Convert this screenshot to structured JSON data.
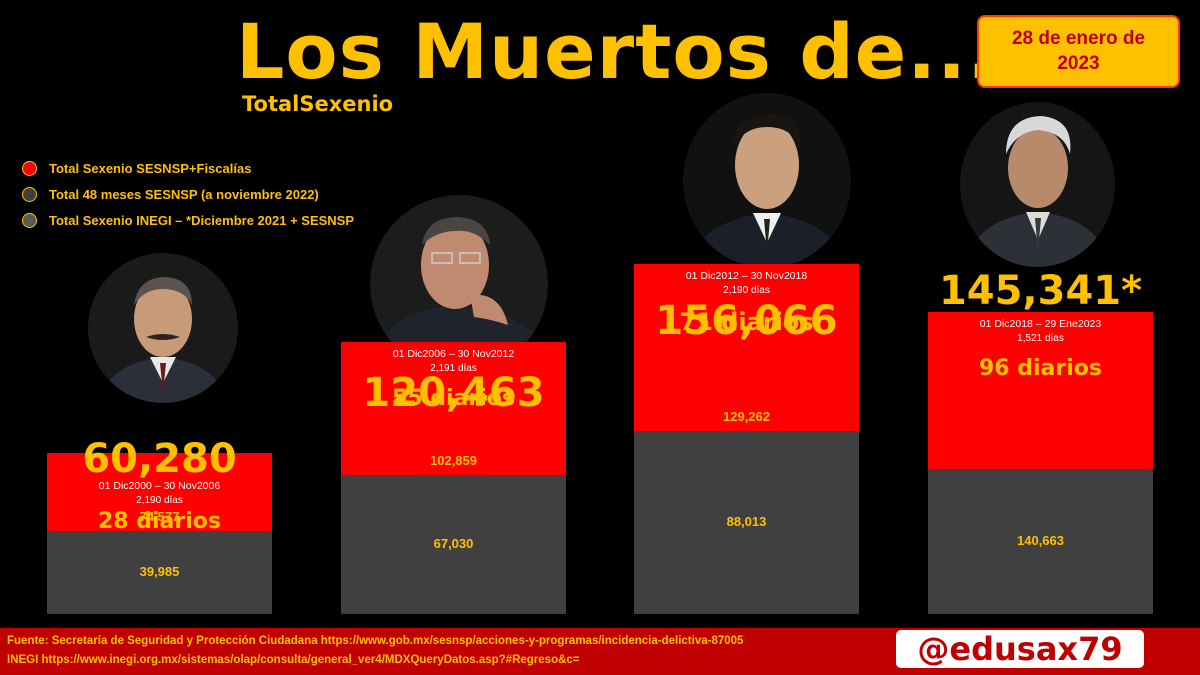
{
  "title": "Los Muertos de...",
  "subtitle": "TotalSexenio",
  "date_badge": [
    "28 de enero de",
    "2023"
  ],
  "legend": [
    {
      "label": "Total Sexenio SESNSP+Fiscalías",
      "color": "#ff0000"
    },
    {
      "label": "Total 48 meses SESNSP (a noviembre 2022)",
      "color": "#404040"
    },
    {
      "label": "Total Sexenio INEGI – *Diciembre 2021 + SESNSP",
      "color": "#595959"
    }
  ],
  "colors": {
    "accent": "#ffc000",
    "red": "#ff0000",
    "dark_red": "#c00000",
    "gray": "#404040",
    "top_gray": "#595959"
  },
  "chart_data": {
    "type": "bar",
    "categories": [
      "01 Dic2000 – 30 Nov2006",
      "01 Dic2006 – 30 Nov2012",
      "01 Dic2012 – 30 Nov2018",
      "01 Dic2018 – 29 Ene2023"
    ],
    "series": [
      {
        "name": "Total Sexenio SESNSP+Fiscalías",
        "values": [
          74577,
          102859,
          129262,
          140663
        ]
      },
      {
        "name": "Total 48 meses SESNSP (a noviembre 2022)",
        "values": [
          39985,
          67030,
          88013,
          null
        ]
      },
      {
        "name": "Total Sexenio INEGI – *Diciembre 2021 + SESNSP",
        "values": [
          60280,
          120463,
          156066,
          145341
        ]
      }
    ],
    "totals_labels": [
      "60,280",
      "120,463",
      "156,066",
      "145,341*"
    ],
    "red_labels": [
      "74,577",
      "102,859",
      "129,262",
      ""
    ],
    "gray_labels": [
      "39,985",
      "67,030",
      "88,013",
      "140,663"
    ],
    "ranges": [
      "01 Dic2000 – 30 Nov2006",
      "01 Dic2006 – 30 Nov2012",
      "01 Dic2012 – 30 Nov2018",
      "01 Dic2018 – 29 Ene2023"
    ],
    "days": [
      "2,190 días",
      "2,191 días",
      "2,190 días",
      "1,521 días"
    ],
    "daily": [
      "28 diarios",
      "55 diarios",
      "71 diarios",
      "96 diarios"
    ],
    "ylim": [
      0,
      160000
    ]
  },
  "source": [
    "Fuente: Secretaría de Seguridad y Protección Ciudadana https://www.gob.mx/sesnsp/acciones-y-programas/incidencia-delictiva-87005",
    "INEGI https://www.inegi.org.mx/sistemas/olap/consulta/general_ver4/MDXQueryDatos.asp?#Regreso&c="
  ],
  "handle": "@edusax79"
}
